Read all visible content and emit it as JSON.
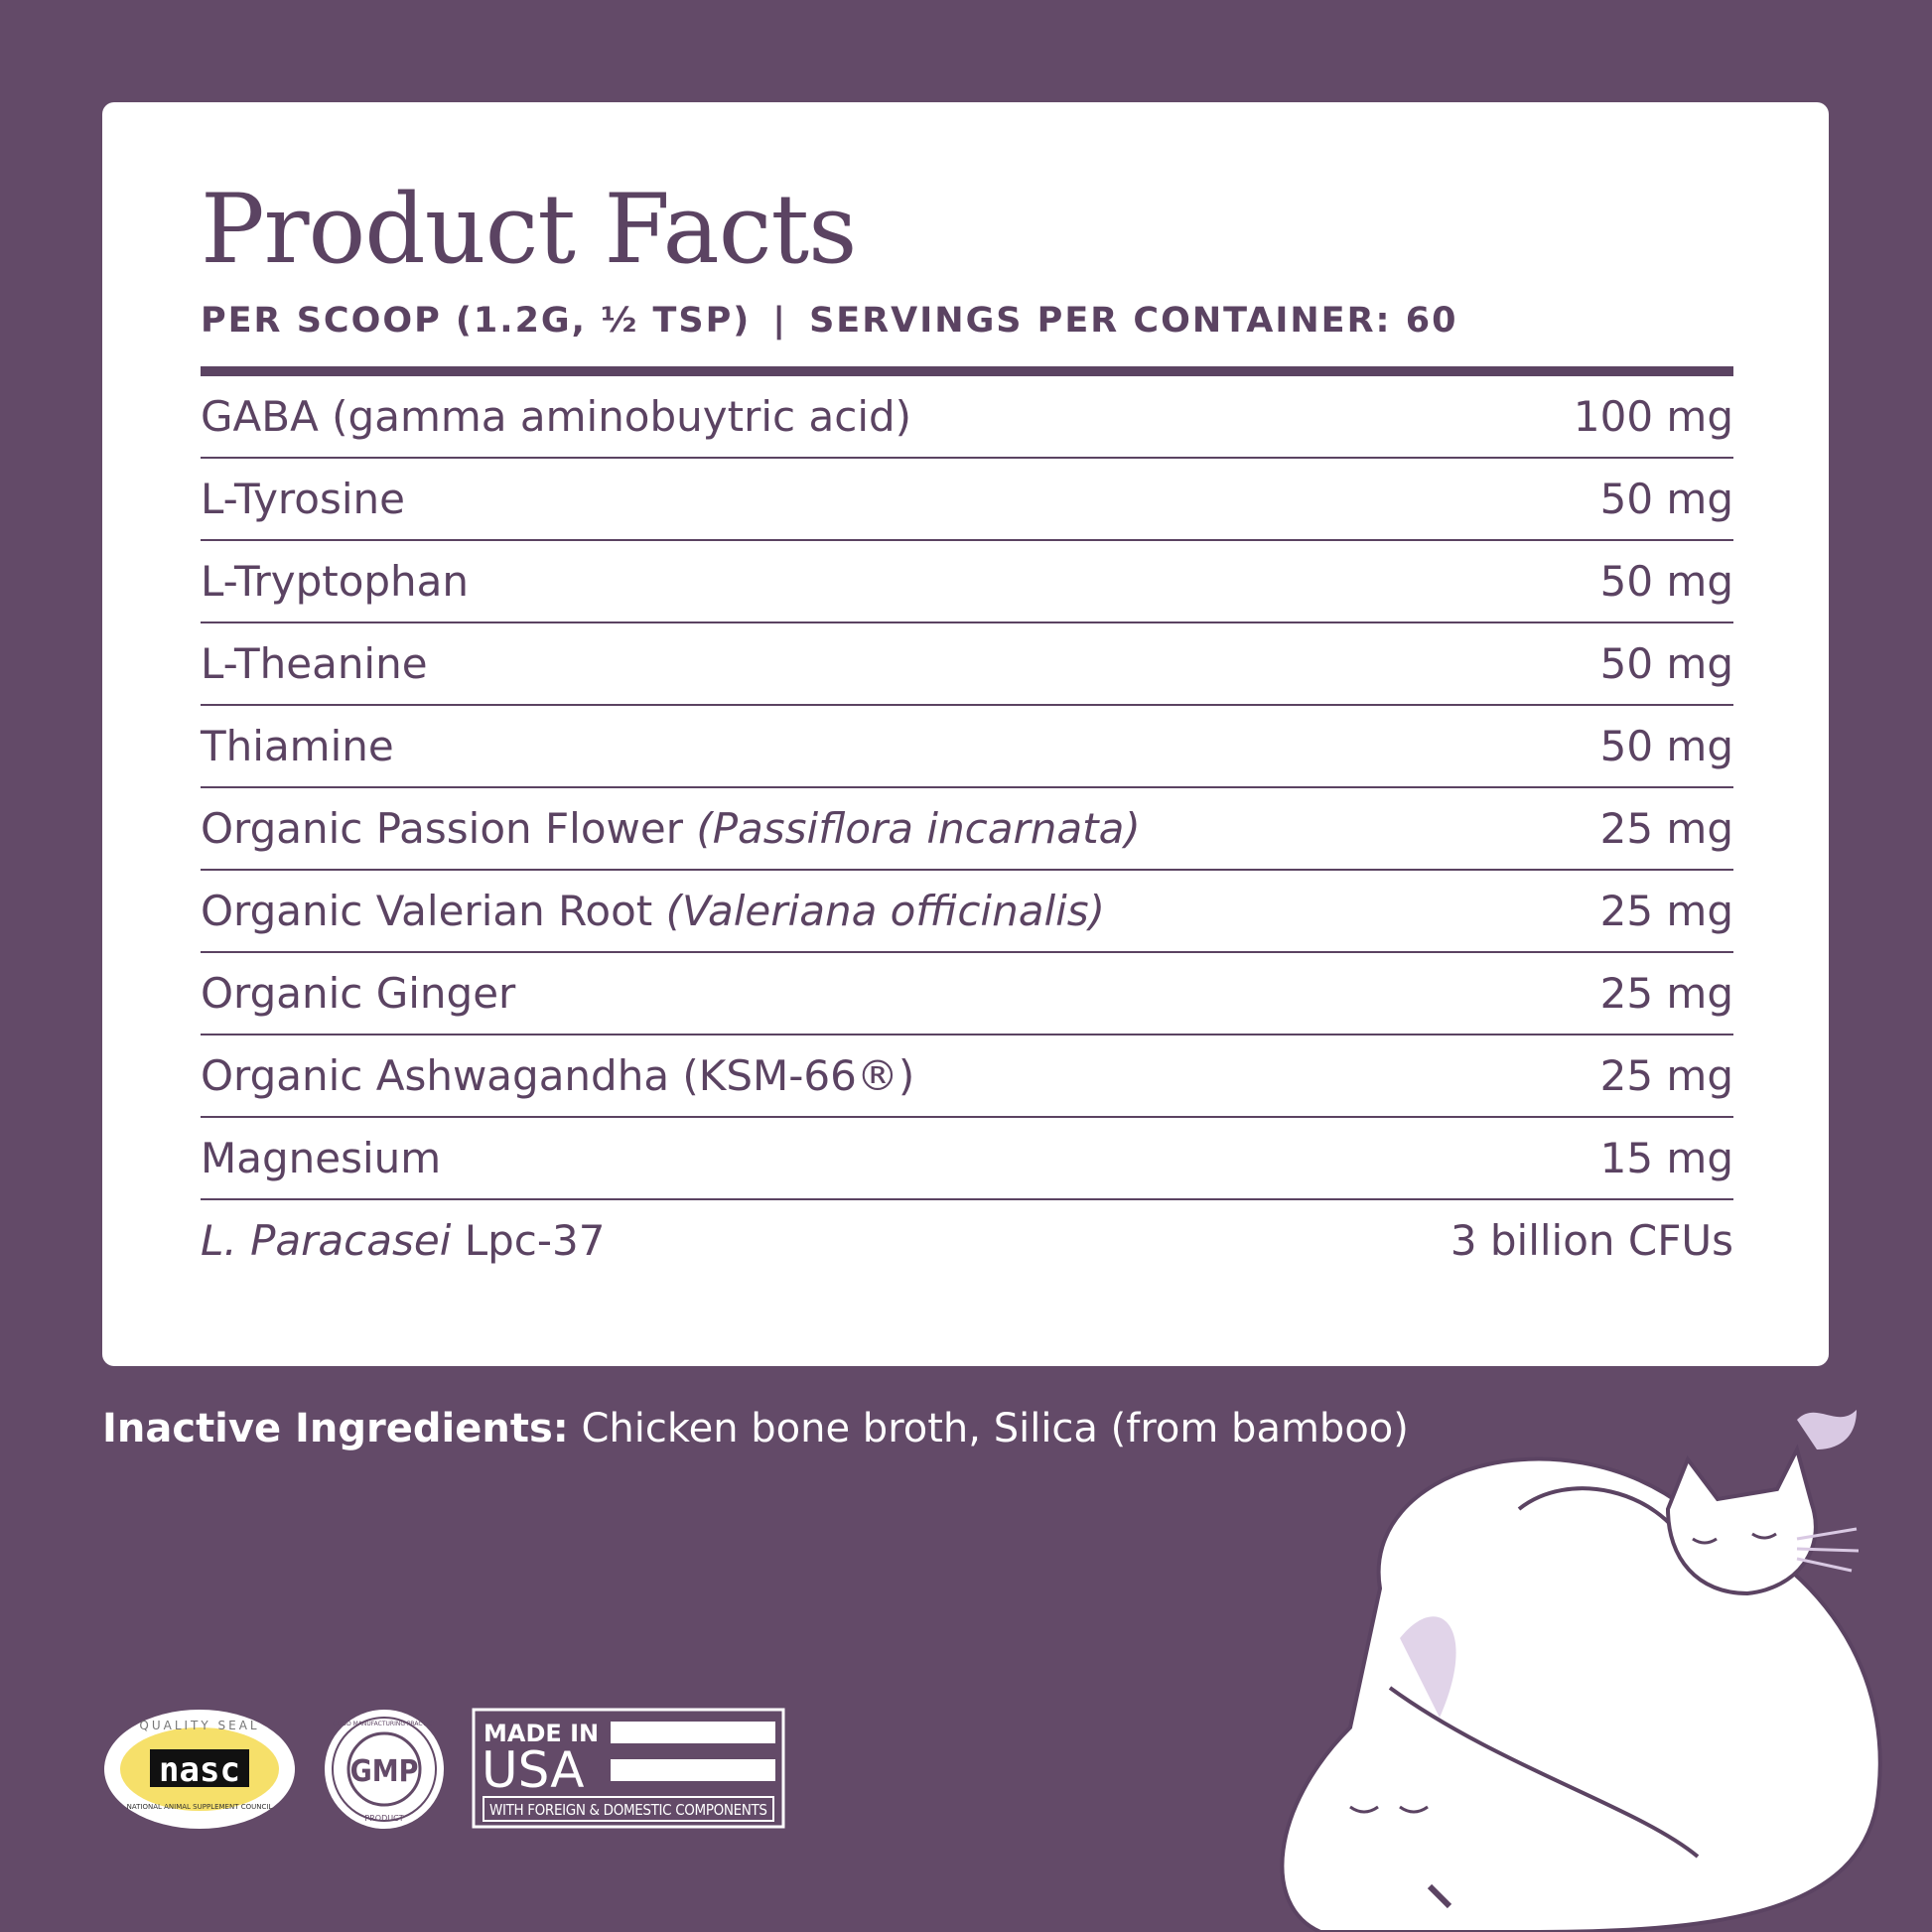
{
  "title": "Product Facts",
  "serving": {
    "per_scoop": "PER SCOOP (1.2G, ½ TSP)",
    "separator": "|",
    "servings": "SERVINGS PER CONTAINER: 60"
  },
  "ingredients": [
    {
      "name": "GABA (gamma aminobuytric acid)",
      "latin": "",
      "amount": "100 mg"
    },
    {
      "name": "L-Tyrosine",
      "latin": "",
      "amount": "50 mg"
    },
    {
      "name": "L-Tryptophan",
      "latin": "",
      "amount": "50 mg"
    },
    {
      "name": "L-Theanine",
      "latin": "",
      "amount": "50 mg"
    },
    {
      "name": "Thiamine",
      "latin": "",
      "amount": "50 mg"
    },
    {
      "name": "Organic Passion Flower ",
      "latin": "(Passiflora incarnata)",
      "amount": "25 mg"
    },
    {
      "name": "Organic Valerian Root ",
      "latin": "(Valeriana officinalis)",
      "amount": "25 mg"
    },
    {
      "name": "Organic Ginger",
      "latin": "",
      "amount": "25 mg"
    },
    {
      "name": "Organic Ashwagandha (KSM-66®)",
      "latin": "",
      "amount": "25 mg"
    },
    {
      "name": "Magnesium",
      "latin": "",
      "amount": "15 mg"
    }
  ],
  "last_ingredient": {
    "latin": "L. Paracasei",
    "name": " Lpc-37",
    "amount": "3 billion CFUs"
  },
  "inactive": {
    "label": "Inactive Ingredients:",
    "text": " Chicken bone broth, Silica (from bamboo)"
  },
  "badges": {
    "nasc": {
      "top": "QUALITY SEAL",
      "logo": "nasc",
      "bottom": "NATIONAL ANIMAL SUPPLEMENT COUNCIL"
    },
    "gmp": {
      "ring": "GOOD MANUFACTURING PRACTICE",
      "center": "GMP",
      "bottom": "PRODUCT"
    },
    "usa": {
      "line1": "MADE IN",
      "line2": "USA",
      "line3": "WITH FOREIGN & DOMESTIC COMPONENTS"
    }
  },
  "colors": {
    "background": "#634a68",
    "text": "#5b4362",
    "card": "#ffffff",
    "accent_lavender": "#d9c9e3",
    "seal_yellow": "#f6e06a"
  }
}
